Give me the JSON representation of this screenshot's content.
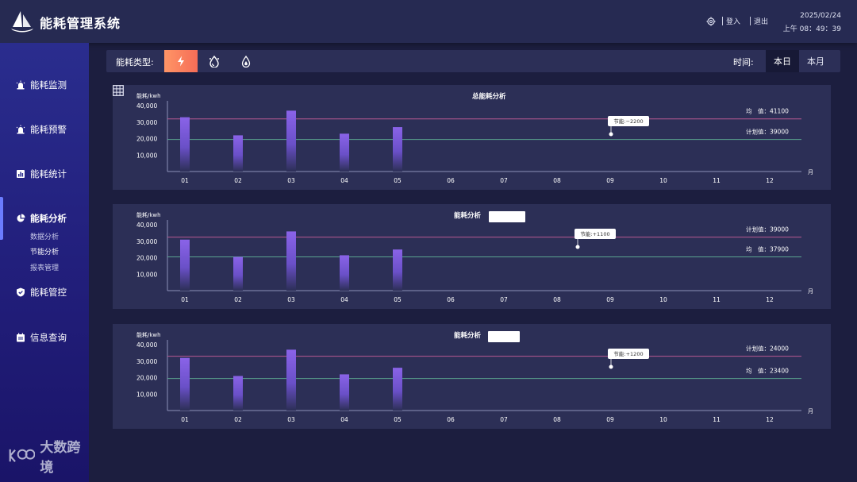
{
  "header": {
    "app_title": "能耗管理系统",
    "login_label": "登入",
    "logout_label": "退出",
    "date": "2025/02/24",
    "time": "上午 08：49：39"
  },
  "sidebar": {
    "items": [
      {
        "label": "能耗监测",
        "icon": "alarm-icon"
      },
      {
        "label": "能耗预警",
        "icon": "alarm-icon"
      },
      {
        "label": "能耗统计",
        "icon": "bar-chart-icon"
      },
      {
        "label": "能耗分析",
        "icon": "pie-chart-icon"
      },
      {
        "label": "能耗管控",
        "icon": "shield-icon"
      },
      {
        "label": "信息查询",
        "icon": "calendar-icon"
      }
    ],
    "sub_items": [
      "数据分析",
      "节能分析",
      "报表管理"
    ],
    "active_item": "能耗分析",
    "active_sub": "节能分析",
    "brand": "大数跨境"
  },
  "filter": {
    "type_label": "能耗类型:",
    "types": [
      "electricity-icon",
      "water-drop-icon",
      "gas-drop-icon"
    ],
    "time_label": "时间:",
    "time_options": [
      "本日",
      "本月"
    ],
    "active_time": "本日"
  },
  "colors": {
    "bar_top": "#8a63e8",
    "bar_bottom": "#2c2f56",
    "pink_line": "#b85a92",
    "green_line": "#5aa58f",
    "active_type": "#f77b5c"
  },
  "chart_data": [
    {
      "type": "bar",
      "title": "总能耗分析",
      "ylabel": "能耗/kwh",
      "xlabel": "月",
      "categories": [
        "01",
        "02",
        "03",
        "04",
        "05",
        "06",
        "07",
        "08",
        "09",
        "10",
        "11",
        "12"
      ],
      "values": [
        33000,
        22000,
        37000,
        23000,
        27000,
        null,
        null,
        null,
        null,
        null,
        null,
        null
      ],
      "yticks": [
        "10,000",
        "20,000",
        "30,000",
        "40,000"
      ],
      "ylim": [
        0,
        42000
      ],
      "reference_lines": [
        {
          "name": "均值",
          "label": "均　值：",
          "value": 41100,
          "display_value": "41100",
          "line_value": 32000,
          "color": "#b85a92"
        },
        {
          "name": "计划值",
          "label": "计划值：",
          "value": 39000,
          "display_value": "39000",
          "line_value": 19500,
          "color": "#5aa58f"
        }
      ],
      "annotation": {
        "text": "节能:−2200",
        "month": "09"
      }
    },
    {
      "type": "bar",
      "title": "能耗分析",
      "ylabel": "能耗/kwh",
      "xlabel": "月",
      "categories": [
        "01",
        "02",
        "03",
        "04",
        "05",
        "06",
        "07",
        "08",
        "09",
        "10",
        "11",
        "12"
      ],
      "values": [
        31000,
        20500,
        36000,
        21500,
        25000,
        null,
        null,
        null,
        null,
        null,
        null,
        null
      ],
      "yticks": [
        "10,000",
        "20,000",
        "30,000",
        "40,000"
      ],
      "ylim": [
        0,
        42000
      ],
      "reference_lines": [
        {
          "name": "计划值",
          "label": "计划值：",
          "value": 39000,
          "display_value": "39000",
          "line_value": 32500,
          "color": "#b85a92"
        },
        {
          "name": "均值",
          "label": "均　值：",
          "value": 37900,
          "display_value": "37900",
          "line_value": 20500,
          "color": "#5aa58f"
        }
      ],
      "annotation": {
        "text": "节能:+1100",
        "month": "09"
      }
    },
    {
      "type": "bar",
      "title": "能耗分析",
      "ylabel": "能耗/kwh",
      "xlabel": "月",
      "categories": [
        "01",
        "02",
        "03",
        "04",
        "05",
        "06",
        "07",
        "08",
        "09",
        "10",
        "11",
        "12"
      ],
      "values": [
        32000,
        21000,
        37000,
        22000,
        26000,
        null,
        null,
        null,
        null,
        null,
        null,
        null
      ],
      "yticks": [
        "10,000",
        "20,000",
        "30,000",
        "40,000"
      ],
      "ylim": [
        0,
        42000
      ],
      "reference_lines": [
        {
          "name": "计划值",
          "label": "计划值：",
          "value": 24000,
          "display_value": "24000",
          "line_value": 33000,
          "color": "#b85a92"
        },
        {
          "name": "均值",
          "label": "均　值：",
          "value": 23400,
          "display_value": "23400",
          "line_value": 19500,
          "color": "#5aa58f"
        }
      ],
      "annotation": {
        "text": "节能:+1200",
        "month": "09"
      }
    }
  ]
}
